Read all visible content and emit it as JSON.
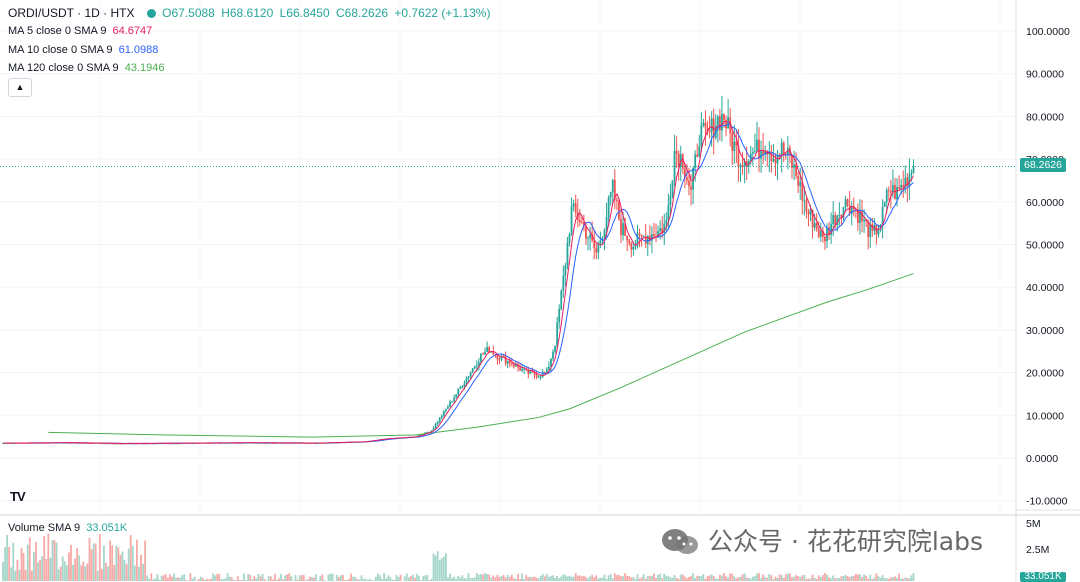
{
  "header": {
    "symbol": "ORDI/USDT · 1D · HTX",
    "ohlc": {
      "open": "O67.5088",
      "high": "H68.6120",
      "low": "L66.8450",
      "close": "C68.2626",
      "change": "+0.7622 (+1.13%)"
    },
    "status_color": "#26a69a"
  },
  "indicators": {
    "ma5": {
      "label": "MA 5 close 0 SMA 9",
      "value": "64.6747",
      "color": "#e91e63"
    },
    "ma10": {
      "label": "MA 10 close 0 SMA 9",
      "value": "61.0988",
      "color": "#2962ff"
    },
    "ma120": {
      "label": "MA 120 close 0 SMA 9",
      "value": "43.1946",
      "color": "#4caf50"
    },
    "volume": {
      "label": "Volume SMA 9",
      "value": "33.051K",
      "color": "#26a69a"
    }
  },
  "collapse_icon": "chevron-up-icon",
  "logo": "TV",
  "watermark": "公众号 · 花花研究院labs",
  "price_axis": {
    "ticks": [
      "100.0000",
      "90.0000",
      "80.0000",
      "70.0000",
      "60.0000",
      "50.0000",
      "40.0000",
      "30.0000",
      "20.0000",
      "10.0000",
      "0.0000",
      "-10.0000"
    ],
    "current_price": "68.2626",
    "current_color": "#26a69a"
  },
  "volume_axis": {
    "ticks": [
      "5M",
      "2.5M"
    ],
    "current": "33.051K"
  },
  "colors": {
    "up": "#26a69a",
    "down": "#ef5350",
    "up_vol": "#a5d6c9",
    "down_vol": "#f7a9a7"
  },
  "chart_data": {
    "type": "candlestick",
    "ylim": [
      -12,
      104
    ],
    "anchors_close": [
      [
        0,
        3.5
      ],
      [
        30,
        3.6
      ],
      [
        60,
        3.4
      ],
      [
        90,
        3.5
      ],
      [
        120,
        3.6
      ],
      [
        150,
        3.5
      ],
      [
        175,
        3.8
      ],
      [
        185,
        4.5
      ],
      [
        200,
        5.0
      ],
      [
        208,
        6.5
      ],
      [
        213,
        10
      ],
      [
        220,
        15
      ],
      [
        228,
        21
      ],
      [
        232,
        24
      ],
      [
        236,
        25.5
      ],
      [
        240,
        24
      ],
      [
        246,
        22.5
      ],
      [
        254,
        20
      ],
      [
        260,
        19.5
      ],
      [
        264,
        20
      ],
      [
        268,
        27
      ],
      [
        272,
        42
      ],
      [
        276,
        58
      ],
      [
        280,
        56
      ],
      [
        284,
        52
      ],
      [
        288,
        48
      ],
      [
        292,
        55
      ],
      [
        296,
        63
      ],
      [
        300,
        54
      ],
      [
        306,
        50
      ],
      [
        312,
        52
      ],
      [
        318,
        53
      ],
      [
        322,
        55
      ],
      [
        326,
        72
      ],
      [
        330,
        70
      ],
      [
        334,
        62
      ],
      [
        338,
        76
      ],
      [
        342,
        75
      ],
      [
        346,
        79
      ],
      [
        350,
        80
      ],
      [
        354,
        74
      ],
      [
        358,
        70
      ],
      [
        362,
        71
      ],
      [
        366,
        72
      ],
      [
        370,
        74
      ],
      [
        374,
        71
      ],
      [
        378,
        72
      ],
      [
        382,
        70
      ],
      [
        386,
        65
      ],
      [
        390,
        58
      ],
      [
        394,
        55
      ],
      [
        398,
        51
      ],
      [
        402,
        55
      ],
      [
        406,
        58
      ],
      [
        410,
        60
      ],
      [
        414,
        58
      ],
      [
        418,
        55
      ],
      [
        422,
        52
      ],
      [
        426,
        55
      ],
      [
        430,
        63
      ],
      [
        434,
        62
      ],
      [
        438,
        65
      ],
      [
        442,
        68.26
      ]
    ],
    "ma120": [
      [
        22,
        6.0
      ],
      [
        80,
        5.4
      ],
      [
        150,
        4.9
      ],
      [
        200,
        5.4
      ],
      [
        230,
        7.2
      ],
      [
        260,
        9.5
      ],
      [
        275,
        11.5
      ],
      [
        300,
        16.5
      ],
      [
        330,
        23
      ],
      [
        360,
        29.5
      ],
      [
        380,
        33
      ],
      [
        400,
        36.5
      ],
      [
        420,
        39.5
      ],
      [
        442,
        43.19
      ]
    ],
    "volume_y_max": 5000000
  }
}
